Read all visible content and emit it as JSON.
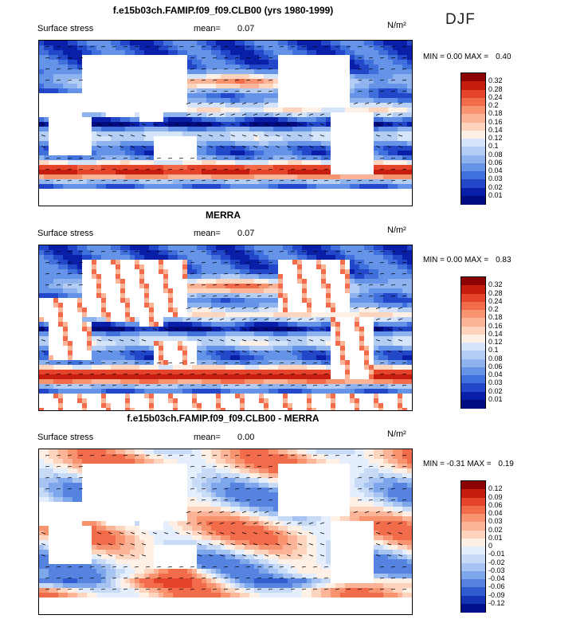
{
  "season": "DJF",
  "chart_data": [
    {
      "type": "heatmap",
      "title": "f.e15b03ch.FAMIP.f09_f09.CLB00 (yrs 1980-1999)",
      "field_label": "Surface stress",
      "mean_label": "mean=",
      "mean_value": "0.07",
      "unit": "N/m²",
      "min_label": "MIN =",
      "min_value": "0.00",
      "max_label": "MAX =",
      "max_value": "0.40",
      "colorbar_levels": [
        "0.32",
        "0.28",
        "0.24",
        "0.2",
        "0.18",
        "0.16",
        "0.14",
        "0.12",
        "0.1",
        "0.08",
        "0.06",
        "0.04",
        "0.03",
        "0.02",
        "0.01"
      ],
      "colorbar_colors": [
        "#8b0000",
        "#c71d10",
        "#e5442a",
        "#f26b4a",
        "#f7936f",
        "#fbb497",
        "#fdd5bf",
        "#fff0e6",
        "#d6e4fa",
        "#b3cdf5",
        "#8eb3ef",
        "#6493e8",
        "#3f70dc",
        "#2347c9",
        "#0a1fa8",
        "#000c80"
      ],
      "colormap": "sequential"
    },
    {
      "type": "heatmap",
      "title": "MERRA",
      "field_label": "Surface stress",
      "mean_label": "mean=",
      "mean_value": "0.07",
      "unit": "N/m²",
      "min_label": "MIN =",
      "min_value": "0.00",
      "max_label": "MAX =",
      "max_value": "0.83",
      "colorbar_levels": [
        "0.32",
        "0.28",
        "0.24",
        "0.2",
        "0.18",
        "0.16",
        "0.14",
        "0.12",
        "0.1",
        "0.08",
        "0.06",
        "0.04",
        "0.03",
        "0.02",
        "0.01"
      ],
      "colorbar_colors": [
        "#8b0000",
        "#c71d10",
        "#e5442a",
        "#f26b4a",
        "#f7936f",
        "#fbb497",
        "#fdd5bf",
        "#fff0e6",
        "#d6e4fa",
        "#b3cdf5",
        "#8eb3ef",
        "#6493e8",
        "#3f70dc",
        "#2347c9",
        "#0a1fa8",
        "#000c80"
      ],
      "colormap": "sequential"
    },
    {
      "type": "heatmap",
      "title": "f.e15b03ch.FAMIP.f09_f09.CLB00 - MERRA",
      "field_label": "Surface stress",
      "mean_label": "mean=",
      "mean_value": "0.00",
      "unit": "N/m²",
      "min_label": "MIN =",
      "min_value": "-0.31",
      "max_label": "MAX =",
      "max_value": "0.19",
      "colorbar_levels": [
        "0.12",
        "0.09",
        "0.06",
        "0.04",
        "0.03",
        "0.02",
        "0.01",
        "0",
        "-0.01",
        "-0.02",
        "-0.03",
        "-0.04",
        "-0.06",
        "-0.09",
        "-0.12"
      ],
      "colorbar_colors": [
        "#8b0000",
        "#c71d10",
        "#e5442a",
        "#f26b4a",
        "#f7936f",
        "#fbb497",
        "#fdd5bf",
        "#fff0e6",
        "#e4eefc",
        "#c7dbf7",
        "#a6c3f1",
        "#7ea6ea",
        "#5683e0",
        "#2f5ccf",
        "#1534b4",
        "#00108c"
      ],
      "colormap": "diverging"
    }
  ]
}
